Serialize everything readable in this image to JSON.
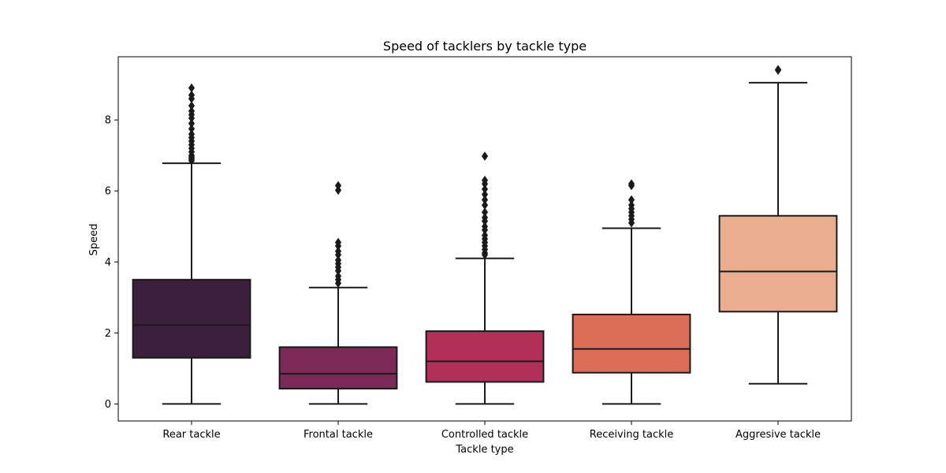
{
  "chart_data": {
    "type": "box",
    "title": "Speed of tacklers by tackle type",
    "xlabel": "Tackle type",
    "ylabel": "Speed",
    "ylim": [
      -0.48,
      9.78
    ],
    "yticks": [
      0,
      2,
      4,
      6,
      8
    ],
    "grid": false,
    "legend": "none",
    "categories": [
      "Rear tackle",
      "Frontal tackle",
      "Controlled tackle",
      "Receiving tackle",
      "Aggresive tackle"
    ],
    "boxes": [
      {
        "category": "Rear tackle",
        "color": "#3b1f3d",
        "whisker_low": 0.0,
        "q1": 1.3,
        "median": 2.22,
        "q3": 3.5,
        "whisker_high": 6.78,
        "outliers": [
          6.85,
          6.9,
          6.95,
          7.0,
          7.1,
          7.2,
          7.3,
          7.4,
          7.5,
          7.6,
          7.75,
          7.9,
          8.05,
          8.15,
          8.25,
          8.4,
          8.6,
          8.7,
          8.9
        ]
      },
      {
        "category": "Frontal tackle",
        "color": "#7b2a58",
        "whisker_low": 0.0,
        "q1": 0.43,
        "median": 0.85,
        "q3": 1.6,
        "whisker_high": 3.28,
        "outliers": [
          3.4,
          3.5,
          3.6,
          3.75,
          3.85,
          3.95,
          4.05,
          4.2,
          4.3,
          4.45,
          4.55,
          6.02,
          6.15
        ]
      },
      {
        "category": "Controlled tackle",
        "color": "#b23057",
        "whisker_low": 0.0,
        "q1": 0.62,
        "median": 1.2,
        "q3": 2.05,
        "whisker_high": 4.1,
        "outliers": [
          4.2,
          4.25,
          4.35,
          4.45,
          4.55,
          4.65,
          4.75,
          4.9,
          5.0,
          5.15,
          5.25,
          5.4,
          5.6,
          5.75,
          5.9,
          6.05,
          6.2,
          6.3,
          6.98
        ]
      },
      {
        "category": "Receiving tackle",
        "color": "#dc6e58",
        "whisker_low": 0.0,
        "q1": 0.88,
        "median": 1.55,
        "q3": 2.52,
        "whisker_high": 4.95,
        "outliers": [
          5.1,
          5.2,
          5.3,
          5.4,
          5.5,
          5.6,
          5.75,
          6.15,
          6.2
        ]
      },
      {
        "category": "Aggresive tackle",
        "color": "#eaae8f",
        "whisker_low": 0.57,
        "q1": 2.6,
        "median": 3.73,
        "q3": 5.3,
        "whisker_high": 9.05,
        "outliers": [
          9.4,
          9.42
        ]
      }
    ]
  }
}
